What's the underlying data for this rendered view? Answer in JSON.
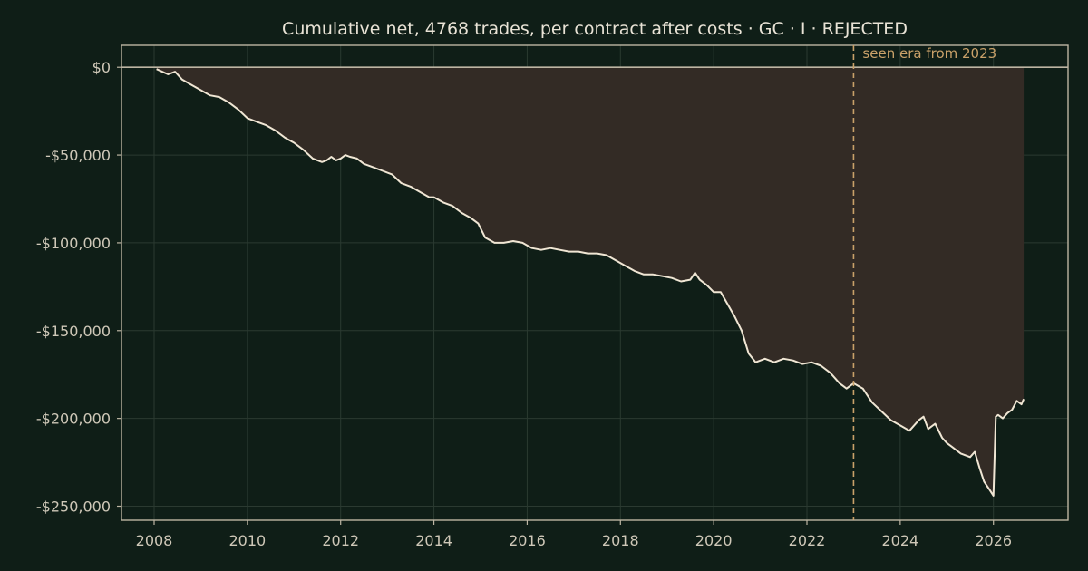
{
  "chart_data": {
    "type": "area",
    "title": "Cumulative net, 4768 trades, per contract after costs  ·  GC · I · REJECTED",
    "xlabel": "",
    "ylabel": "",
    "xlim": [
      2007.3,
      2027.6
    ],
    "ylim": [
      -258000,
      12500
    ],
    "grid": true,
    "x_ticks": [
      2008,
      2010,
      2012,
      2014,
      2016,
      2018,
      2020,
      2022,
      2024,
      2026
    ],
    "y_ticks": [
      {
        "value": 0,
        "label": "$0"
      },
      {
        "value": -50000,
        "label": "-$50,000"
      },
      {
        "value": -100000,
        "label": "-$100,000"
      },
      {
        "value": -150000,
        "label": "-$150,000"
      },
      {
        "value": -200000,
        "label": "-$200,000"
      },
      {
        "value": -250000,
        "label": "-$250,000"
      }
    ],
    "series": [
      {
        "x": [
          2008.05,
          2008.3,
          2008.45,
          2008.6,
          2008.8,
          2009.0,
          2009.2,
          2009.4,
          2009.6,
          2009.8,
          2010.0,
          2010.2,
          2010.4,
          2010.6,
          2010.8,
          2011.0,
          2011.2,
          2011.4,
          2011.6,
          2011.7,
          2011.8,
          2011.9,
          2012.0,
          2012.1,
          2012.2,
          2012.35,
          2012.5,
          2012.7,
          2012.9,
          2013.1,
          2013.3,
          2013.5,
          2013.7,
          2013.9,
          2014.0,
          2014.2,
          2014.4,
          2014.6,
          2014.8,
          2014.95,
          2015.1,
          2015.3,
          2015.5,
          2015.7,
          2015.9,
          2016.1,
          2016.3,
          2016.5,
          2016.7,
          2016.9,
          2017.1,
          2017.3,
          2017.5,
          2017.7,
          2017.9,
          2018.1,
          2018.3,
          2018.5,
          2018.7,
          2018.9,
          2019.1,
          2019.3,
          2019.5,
          2019.6,
          2019.7,
          2019.85,
          2020.0,
          2020.15,
          2020.3,
          2020.45,
          2020.6,
          2020.75,
          2020.9,
          2021.1,
          2021.3,
          2021.5,
          2021.7,
          2021.9,
          2022.1,
          2022.3,
          2022.5,
          2022.7,
          2022.85,
          2023.0,
          2023.2,
          2023.4,
          2023.6,
          2023.8,
          2024.0,
          2024.2,
          2024.4,
          2024.5,
          2024.6,
          2024.75,
          2024.9,
          2025.0,
          2025.1,
          2025.3,
          2025.5,
          2025.6,
          2025.7,
          2025.8,
          2025.9,
          2026.0,
          2026.05,
          2026.1,
          2026.2,
          2026.3,
          2026.4,
          2026.5,
          2026.6,
          2026.65
        ],
        "values": [
          -1000,
          -4000,
          -2500,
          -7000,
          -10000,
          -13000,
          -16000,
          -17000,
          -20000,
          -24000,
          -29000,
          -31000,
          -33000,
          -36000,
          -40000,
          -43000,
          -47000,
          -52000,
          -54000,
          -53000,
          -51000,
          -53000,
          -52000,
          -50000,
          -51000,
          -52000,
          -55000,
          -57000,
          -59000,
          -61000,
          -66000,
          -68000,
          -71000,
          -74000,
          -74000,
          -77000,
          -79000,
          -83000,
          -86000,
          -89000,
          -97000,
          -100000,
          -100000,
          -99000,
          -100000,
          -103000,
          -104000,
          -103000,
          -104000,
          -105000,
          -105000,
          -106000,
          -106000,
          -107000,
          -110000,
          -113000,
          -116000,
          -118000,
          -118000,
          -119000,
          -120000,
          -122000,
          -121000,
          -117000,
          -121000,
          -124000,
          -128000,
          -128000,
          -135000,
          -142000,
          -150000,
          -163000,
          -168000,
          -166000,
          -168000,
          -166000,
          -167000,
          -169000,
          -168000,
          -170000,
          -174000,
          -180000,
          -183000,
          -180000,
          -183000,
          -191000,
          -196000,
          -201000,
          -204000,
          -207000,
          -201000,
          -199000,
          -206000,
          -203000,
          -211000,
          -214000,
          -216000,
          -220000,
          -222000,
          -219000,
          -228000,
          -236000,
          -240000,
          -244000,
          -199000,
          -198000,
          -200000,
          -197000,
          -195000,
          -190000,
          -192000,
          -189000
        ]
      }
    ],
    "annotation": {
      "x": 2023.0,
      "text": "seen era from 2023"
    },
    "colors": {
      "background": "#0f1e17",
      "frame": "#bdb5a3",
      "grid": "#2b3a31",
      "line": "#f0e6d4",
      "fill": "#332b25",
      "marker": "#c9a169",
      "zero_line": "#bdb5a3"
    }
  }
}
